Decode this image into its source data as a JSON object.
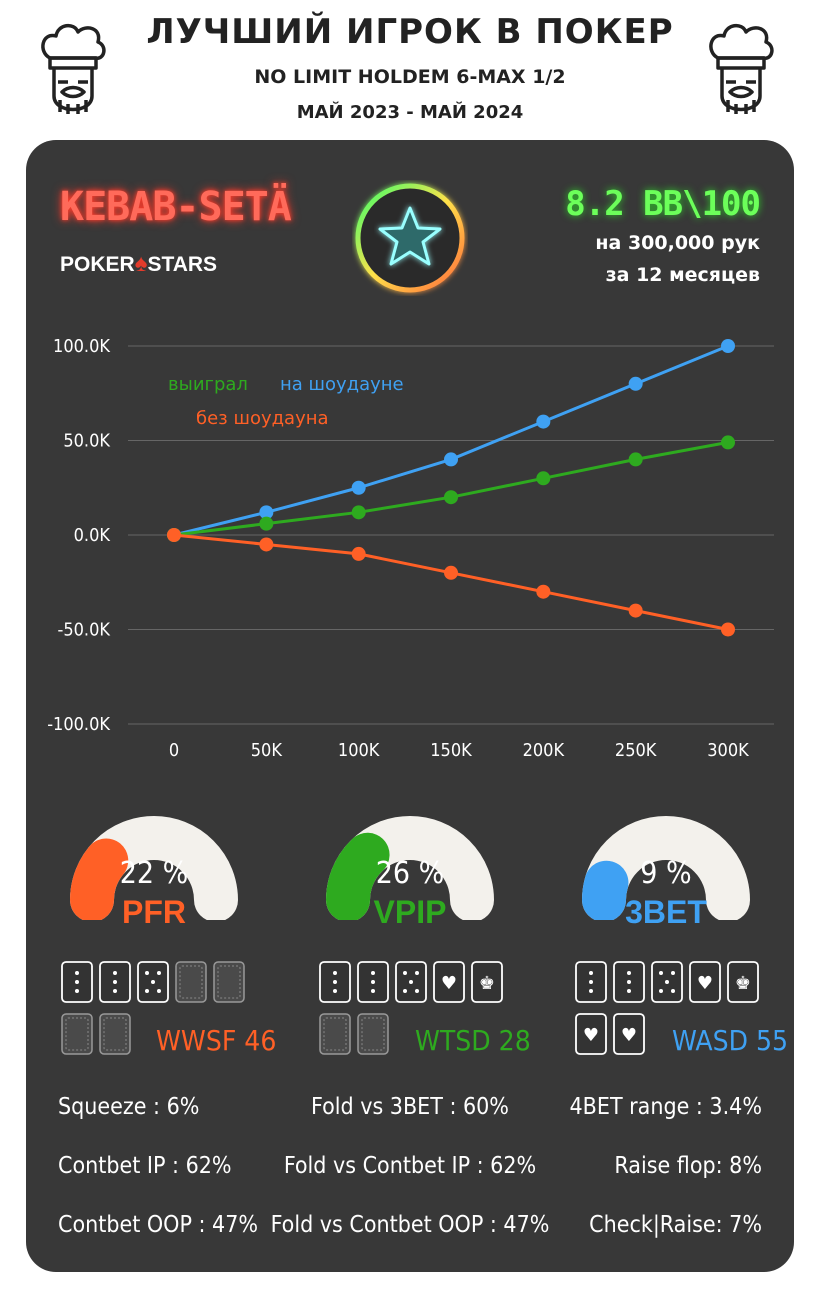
{
  "header": {
    "title": "ЛУЧШИЙ ИГРОК В ПОКЕР",
    "subtitle": "NO LIMIT HOLDEM 6-MAX 1/2",
    "period": "МАЙ 2023 - МАЙ 2024"
  },
  "player": {
    "name": "KEBAB-SETÄ",
    "room_left": "POKER",
    "room_right": "STARS",
    "winrate": "8.2 BB\\100",
    "hands": "на 300,000 рук",
    "months": "за  12 месяцев"
  },
  "chart_data": {
    "type": "line",
    "x": [
      0,
      50000,
      100000,
      150000,
      200000,
      250000,
      300000
    ],
    "xticks": [
      "0",
      "50K",
      "100K",
      "150K",
      "200K",
      "250K",
      "300K"
    ],
    "yticks": [
      "100.0K",
      "50.0K",
      "0.0K",
      "-50.0K",
      "-100.0K"
    ],
    "ylim": [
      -100000,
      100000
    ],
    "grid": true,
    "series": [
      {
        "name": "на шоудауне",
        "color": "#3fa1f3",
        "values": [
          0,
          12000,
          25000,
          40000,
          60000,
          80000,
          100000
        ]
      },
      {
        "name": "выиграл",
        "color": "#2eaa1f",
        "values": [
          0,
          6000,
          12000,
          20000,
          30000,
          40000,
          49000
        ]
      },
      {
        "name": "без шоудауна",
        "color": "#ff6026",
        "values": [
          0,
          -5000,
          -10000,
          -20000,
          -30000,
          -40000,
          -50000
        ]
      }
    ]
  },
  "gauges": [
    {
      "value": "22 %",
      "label": "PFR",
      "fraction": 0.22,
      "color": "#ff6026"
    },
    {
      "value": "26 %",
      "label": "VPIP",
      "fraction": 0.26,
      "color": "#2eaa1f"
    },
    {
      "value": "9 %",
      "label": "3BET",
      "fraction": 0.09,
      "color": "#3fa1f3"
    }
  ],
  "tails": [
    {
      "label": "WWSF 46",
      "color": "#ff6026"
    },
    {
      "label": "WTSD 28",
      "color": "#2eaa1f"
    },
    {
      "label": "WASD 55",
      "color": "#3fa1f3"
    }
  ],
  "stats": {
    "left": [
      "Squeeze : 6%",
      "Contbet IP : 62%",
      "Contbet OOP : 47%"
    ],
    "center": [
      "Fold vs 3BET : 60%",
      "Fold vs Contbet IP : 62%",
      "Fold vs Contbet OOP : 47%"
    ],
    "right": [
      "4BET range : 3.4%",
      "Raise flop: 8%",
      "Check|Raise: 7%"
    ]
  }
}
